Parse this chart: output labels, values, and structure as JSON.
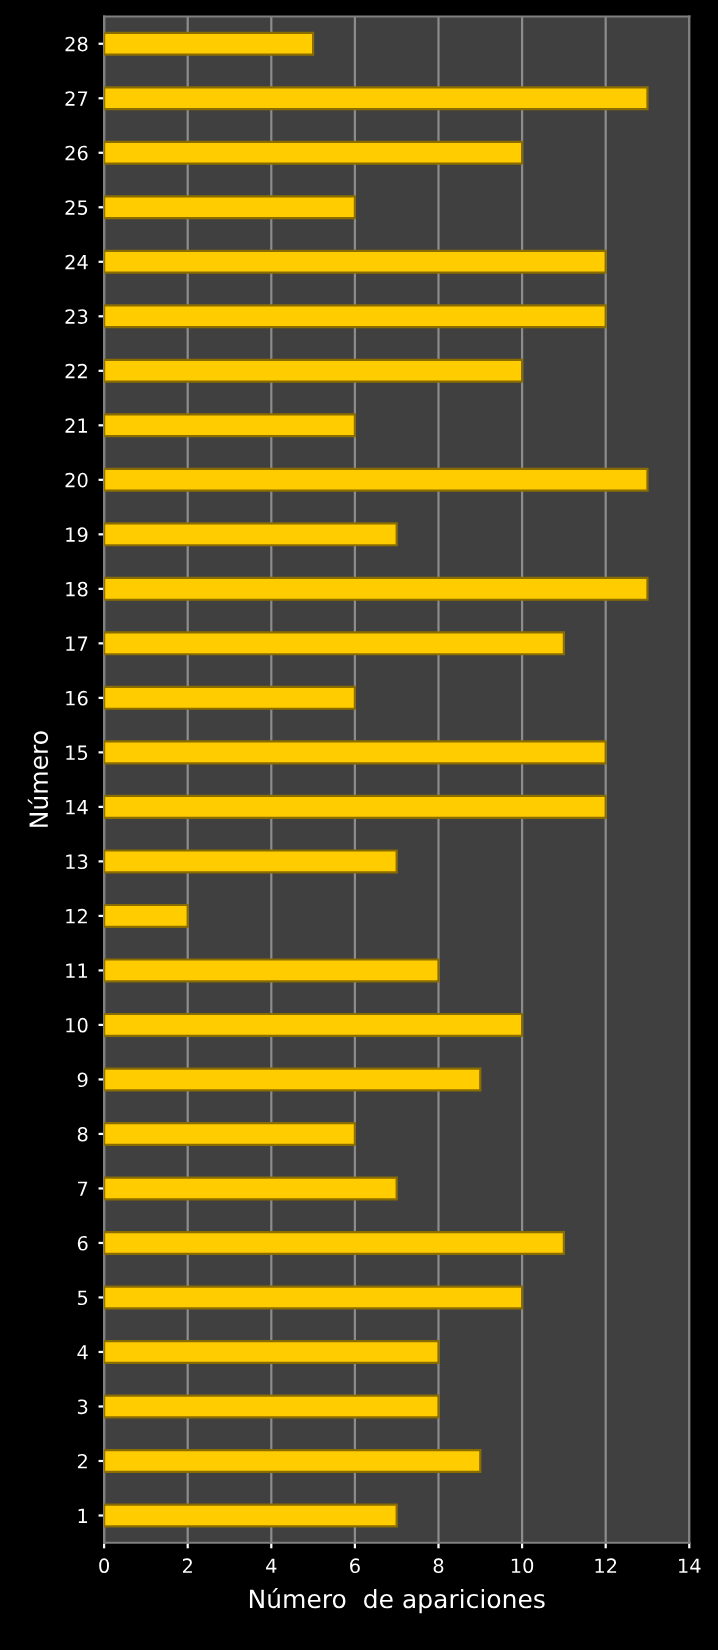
{
  "chart_data": {
    "type": "bar",
    "orientation": "horizontal",
    "xlabel": "Número  de apariciones",
    "ylabel": "Número",
    "categories": [
      "28",
      "27",
      "26",
      "25",
      "24",
      "23",
      "22",
      "21",
      "20",
      "19",
      "18",
      "17",
      "16",
      "15",
      "14",
      "13",
      "12",
      "11",
      "10",
      "9",
      "8",
      "7",
      "6",
      "5",
      "4",
      "3",
      "2",
      "1"
    ],
    "values": [
      5,
      13,
      10,
      6,
      12,
      12,
      10,
      6,
      13,
      7,
      13,
      11,
      6,
      12,
      12,
      7,
      2,
      8,
      10,
      9,
      6,
      7,
      11,
      10,
      8,
      8,
      9,
      7
    ],
    "color": "#ffcc00",
    "xlim": [
      0,
      14
    ],
    "xticks": [
      0,
      2,
      4,
      6,
      8,
      10,
      12,
      14
    ],
    "grid": "x"
  }
}
